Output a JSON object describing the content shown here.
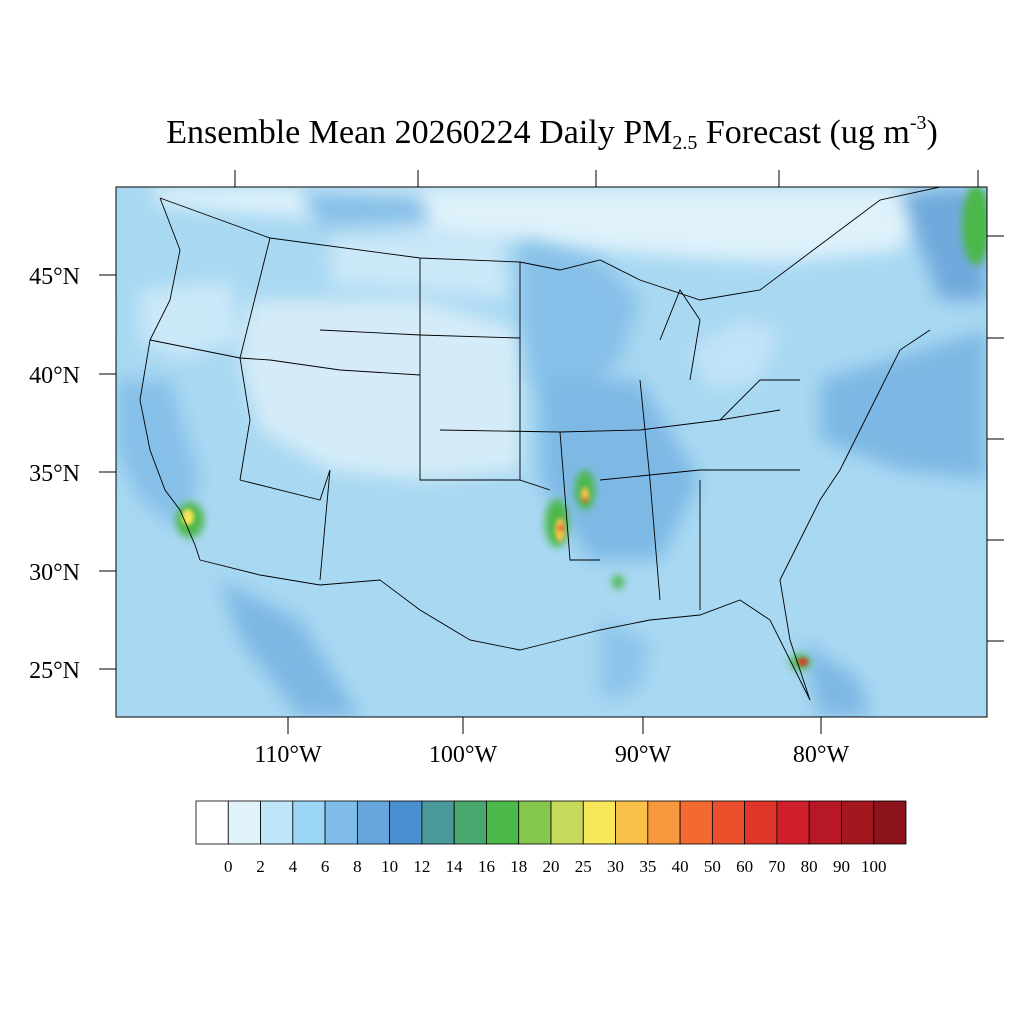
{
  "title": {
    "prefix": "Ensemble Mean 20260224 Daily PM",
    "subscript": "2.5",
    "middle": " Forecast (ug m",
    "superscript": "-3",
    "suffix": ")"
  },
  "map": {
    "lat_labels": [
      "45°N",
      "40°N",
      "35°N",
      "30°N",
      "25°N"
    ],
    "lon_labels": [
      "110°W",
      "100°W",
      "90°W",
      "80°W"
    ],
    "background_color": "#a8d8f2"
  },
  "colorbar": {
    "labels": [
      "0",
      "2",
      "4",
      "6",
      "8",
      "10",
      "12",
      "14",
      "16",
      "18",
      "20",
      "25",
      "30",
      "35",
      "40",
      "50",
      "60",
      "70",
      "80",
      "90",
      "100"
    ],
    "colors": [
      "#ffffff",
      "#e0f3fb",
      "#bfe6f8",
      "#9cd6f5",
      "#80bde8",
      "#66a6dc",
      "#4a8fd0",
      "#4a9a9c",
      "#48a86d",
      "#4bb84a",
      "#86c74d",
      "#c6d95b",
      "#f7e75a",
      "#f9c14a",
      "#f8983e",
      "#f26a30",
      "#eb4f2c",
      "#e0362a",
      "#cf1f2b",
      "#b81826",
      "#a3171f",
      "#8c131b"
    ]
  }
}
